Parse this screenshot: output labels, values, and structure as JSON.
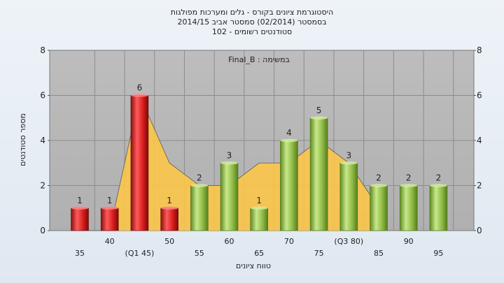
{
  "chart_data": {
    "type": "bar",
    "title_lines": [
      "היסטוגרמת ציונים בקורס - גלים ומערכות מפולגות",
      "בסמסטר  (02/2014)  סמסטר אביב 2014/15",
      "סטודנטים רשומים - 102"
    ],
    "plot_label": "במשימה : Final_B",
    "xlabel": "טווח ציונים",
    "ylabel": "מספר סטודנטים",
    "ylim": [
      0,
      8
    ],
    "yticks": [
      0,
      2,
      4,
      6,
      8
    ],
    "grid": true,
    "categories": [
      "35",
      "40",
      "(Q1 45)",
      "50",
      "55",
      "60",
      "65",
      "70",
      "75",
      "(Q3 80)",
      "85",
      "90",
      "95"
    ],
    "values": [
      1,
      1,
      6,
      1,
      2,
      3,
      1,
      4,
      5,
      3,
      2,
      2,
      2
    ],
    "bar_colors": [
      "#e02424",
      "#e02424",
      "#e02424",
      "#e02424",
      "#96c24a",
      "#96c24a",
      "#96c24a",
      "#96c24a",
      "#96c24a",
      "#96c24a",
      "#96c24a",
      "#96c24a",
      "#96c24a"
    ],
    "area_values": [
      0,
      0,
      6,
      3,
      2,
      2,
      3,
      3,
      4,
      3,
      1,
      null,
      null
    ],
    "colors": {
      "fail": "#e02424",
      "pass": "#96c24a",
      "area": "#ffc843",
      "plot_bg": "#b8b8b8"
    }
  }
}
